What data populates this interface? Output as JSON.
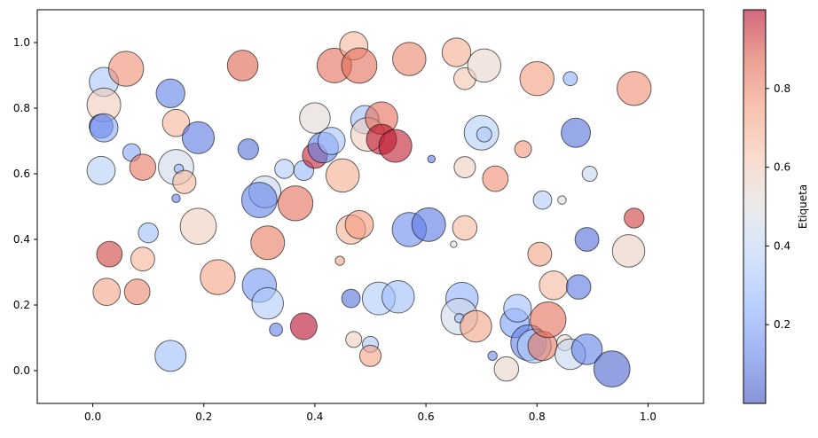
{
  "chart_data": {
    "type": "scatter",
    "title": "",
    "xlabel": "",
    "ylabel": "",
    "xlim": [
      -0.1,
      1.1
    ],
    "ylim": [
      -0.1,
      1.1
    ],
    "xticks": [
      0.0,
      0.2,
      0.4,
      0.6,
      0.8,
      1.0
    ],
    "yticks": [
      0.0,
      0.2,
      0.4,
      0.6,
      0.8,
      1.0
    ],
    "grid": false,
    "colormap": "coolwarm",
    "marker_alpha": 0.6,
    "marker_edgecolor": "#000000",
    "colorbar": {
      "label": "Etiqueta",
      "range": [
        0.0,
        1.0
      ],
      "ticks": [
        0.2,
        0.4,
        0.6,
        0.8
      ]
    },
    "point_fields": [
      "x",
      "y",
      "size",
      "label_value"
    ],
    "points": [
      [
        0.02,
        0.88,
        300,
        0.33
      ],
      [
        0.06,
        0.92,
        430,
        0.78
      ],
      [
        0.02,
        0.81,
        400,
        0.6
      ],
      [
        0.015,
        0.745,
        200,
        0.05
      ],
      [
        0.02,
        0.74,
        280,
        0.22
      ],
      [
        0.015,
        0.61,
        280,
        0.37
      ],
      [
        0.07,
        0.665,
        110,
        0.22
      ],
      [
        0.09,
        0.62,
        240,
        0.83
      ],
      [
        0.03,
        0.355,
        230,
        0.92
      ],
      [
        0.025,
        0.24,
        260,
        0.72
      ],
      [
        0.08,
        0.24,
        230,
        0.8
      ],
      [
        0.09,
        0.34,
        200,
        0.68
      ],
      [
        0.1,
        0.42,
        140,
        0.3
      ],
      [
        0.14,
        0.045,
        340,
        0.3
      ],
      [
        0.14,
        0.845,
        290,
        0.12
      ],
      [
        0.15,
        0.755,
        260,
        0.68
      ],
      [
        0.15,
        0.62,
        440,
        0.45
      ],
      [
        0.155,
        0.615,
        30,
        0.28
      ],
      [
        0.15,
        0.525,
        25,
        0.12
      ],
      [
        0.165,
        0.575,
        190,
        0.66
      ],
      [
        0.19,
        0.71,
        360,
        0.1
      ],
      [
        0.19,
        0.44,
        460,
        0.58
      ],
      [
        0.27,
        0.93,
        330,
        0.87
      ],
      [
        0.225,
        0.285,
        430,
        0.73
      ],
      [
        0.28,
        0.675,
        150,
        0.08
      ],
      [
        0.31,
        0.545,
        360,
        0.42
      ],
      [
        0.3,
        0.52,
        440,
        0.12
      ],
      [
        0.3,
        0.26,
        410,
        0.18
      ],
      [
        0.315,
        0.205,
        350,
        0.35
      ],
      [
        0.315,
        0.39,
        400,
        0.82
      ],
      [
        0.33,
        0.125,
        60,
        0.12
      ],
      [
        0.345,
        0.615,
        130,
        0.36
      ],
      [
        0.365,
        0.51,
        430,
        0.85
      ],
      [
        0.38,
        0.61,
        140,
        0.28
      ],
      [
        0.38,
        0.135,
        250,
        0.99
      ],
      [
        0.4,
        0.77,
        330,
        0.52
      ],
      [
        0.4,
        0.655,
        220,
        0.96
      ],
      [
        0.415,
        0.68,
        330,
        0.12
      ],
      [
        0.43,
        0.7,
        260,
        0.32
      ],
      [
        0.435,
        0.93,
        420,
        0.85
      ],
      [
        0.45,
        0.595,
        390,
        0.7
      ],
      [
        0.445,
        0.335,
        30,
        0.72
      ],
      [
        0.465,
        0.22,
        120,
        0.08
      ],
      [
        0.465,
        0.43,
        300,
        0.68
      ],
      [
        0.48,
        0.445,
        280,
        0.75
      ],
      [
        0.47,
        0.99,
        280,
        0.67
      ],
      [
        0.48,
        0.93,
        440,
        0.85
      ],
      [
        0.47,
        0.095,
        90,
        0.58
      ],
      [
        0.49,
        0.765,
        280,
        0.3
      ],
      [
        0.495,
        0.72,
        400,
        0.58
      ],
      [
        0.5,
        0.08,
        90,
        0.33
      ],
      [
        0.5,
        0.045,
        160,
        0.72
      ],
      [
        0.52,
        0.77,
        370,
        0.85
      ],
      [
        0.52,
        0.705,
        320,
        0.98
      ],
      [
        0.545,
        0.685,
        380,
        0.97
      ],
      [
        0.515,
        0.22,
        380,
        0.35
      ],
      [
        0.55,
        0.225,
        370,
        0.3
      ],
      [
        0.57,
        0.95,
        390,
        0.8
      ],
      [
        0.57,
        0.43,
        410,
        0.15
      ],
      [
        0.605,
        0.445,
        400,
        0.1
      ],
      [
        0.61,
        0.645,
        20,
        0.1
      ],
      [
        0.65,
        0.385,
        15,
        0.5
      ],
      [
        0.655,
        0.97,
        290,
        0.7
      ],
      [
        0.67,
        0.89,
        170,
        0.62
      ],
      [
        0.67,
        0.62,
        160,
        0.58
      ],
      [
        0.67,
        0.435,
        210,
        0.67
      ],
      [
        0.665,
        0.22,
        370,
        0.25
      ],
      [
        0.66,
        0.165,
        470,
        0.45
      ],
      [
        0.66,
        0.16,
        30,
        0.3
      ],
      [
        0.69,
        0.135,
        350,
        0.72
      ],
      [
        0.705,
        0.93,
        390,
        0.55
      ],
      [
        0.7,
        0.725,
        420,
        0.37
      ],
      [
        0.705,
        0.72,
        80,
        0.35
      ],
      [
        0.72,
        0.045,
        30,
        0.15
      ],
      [
        0.725,
        0.585,
        230,
        0.78
      ],
      [
        0.745,
        0.005,
        210,
        0.55
      ],
      [
        0.76,
        0.145,
        300,
        0.2
      ],
      [
        0.765,
        0.19,
        270,
        0.3
      ],
      [
        0.775,
        0.675,
        100,
        0.76
      ],
      [
        0.785,
        0.085,
        450,
        0.12
      ],
      [
        0.795,
        0.075,
        400,
        0.35
      ],
      [
        0.8,
        0.89,
        410,
        0.74
      ],
      [
        0.805,
        0.355,
        200,
        0.72
      ],
      [
        0.81,
        0.52,
        120,
        0.35
      ],
      [
        0.81,
        0.075,
        300,
        0.82
      ],
      [
        0.82,
        0.155,
        450,
        0.85
      ],
      [
        0.83,
        0.26,
        290,
        0.67
      ],
      [
        0.845,
        0.52,
        25,
        0.5
      ],
      [
        0.85,
        0.085,
        90,
        0.55
      ],
      [
        0.86,
        0.05,
        330,
        0.42
      ],
      [
        0.86,
        0.89,
        70,
        0.25
      ],
      [
        0.87,
        0.725,
        300,
        0.08
      ],
      [
        0.875,
        0.255,
        210,
        0.1
      ],
      [
        0.89,
        0.4,
        200,
        0.07
      ],
      [
        0.89,
        0.065,
        330,
        0.12
      ],
      [
        0.895,
        0.6,
        80,
        0.42
      ],
      [
        0.935,
        0.005,
        460,
        0.05
      ],
      [
        0.965,
        0.365,
        370,
        0.57
      ],
      [
        0.975,
        0.465,
        140,
        0.93
      ],
      [
        0.975,
        0.86,
        410,
        0.78
      ]
    ]
  }
}
